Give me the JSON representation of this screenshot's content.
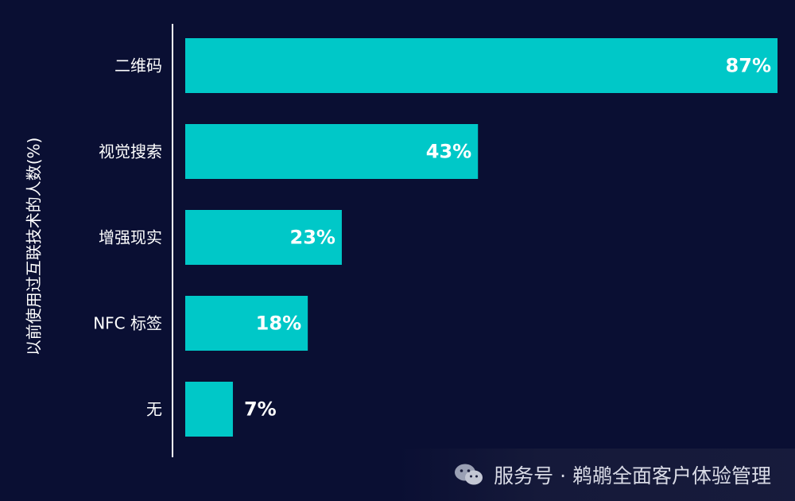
{
  "chart_data": {
    "type": "bar",
    "orientation": "horizontal",
    "categories": [
      "二维码",
      "视觉搜索",
      "增强现实",
      "NFC 标签",
      "无"
    ],
    "values": [
      87,
      43,
      23,
      18,
      7
    ],
    "value_labels": [
      "87%",
      "43%",
      "23%",
      "18%",
      "7%"
    ],
    "xlim": [
      0,
      87
    ],
    "ylabel": "以前使用过互联技术的人数(%)",
    "bar_color": "#00c8c8",
    "grid": false
  },
  "watermark": {
    "text": "服务号 · 鹈鹕全面客户体验管理",
    "icon": "wechat-icon"
  }
}
